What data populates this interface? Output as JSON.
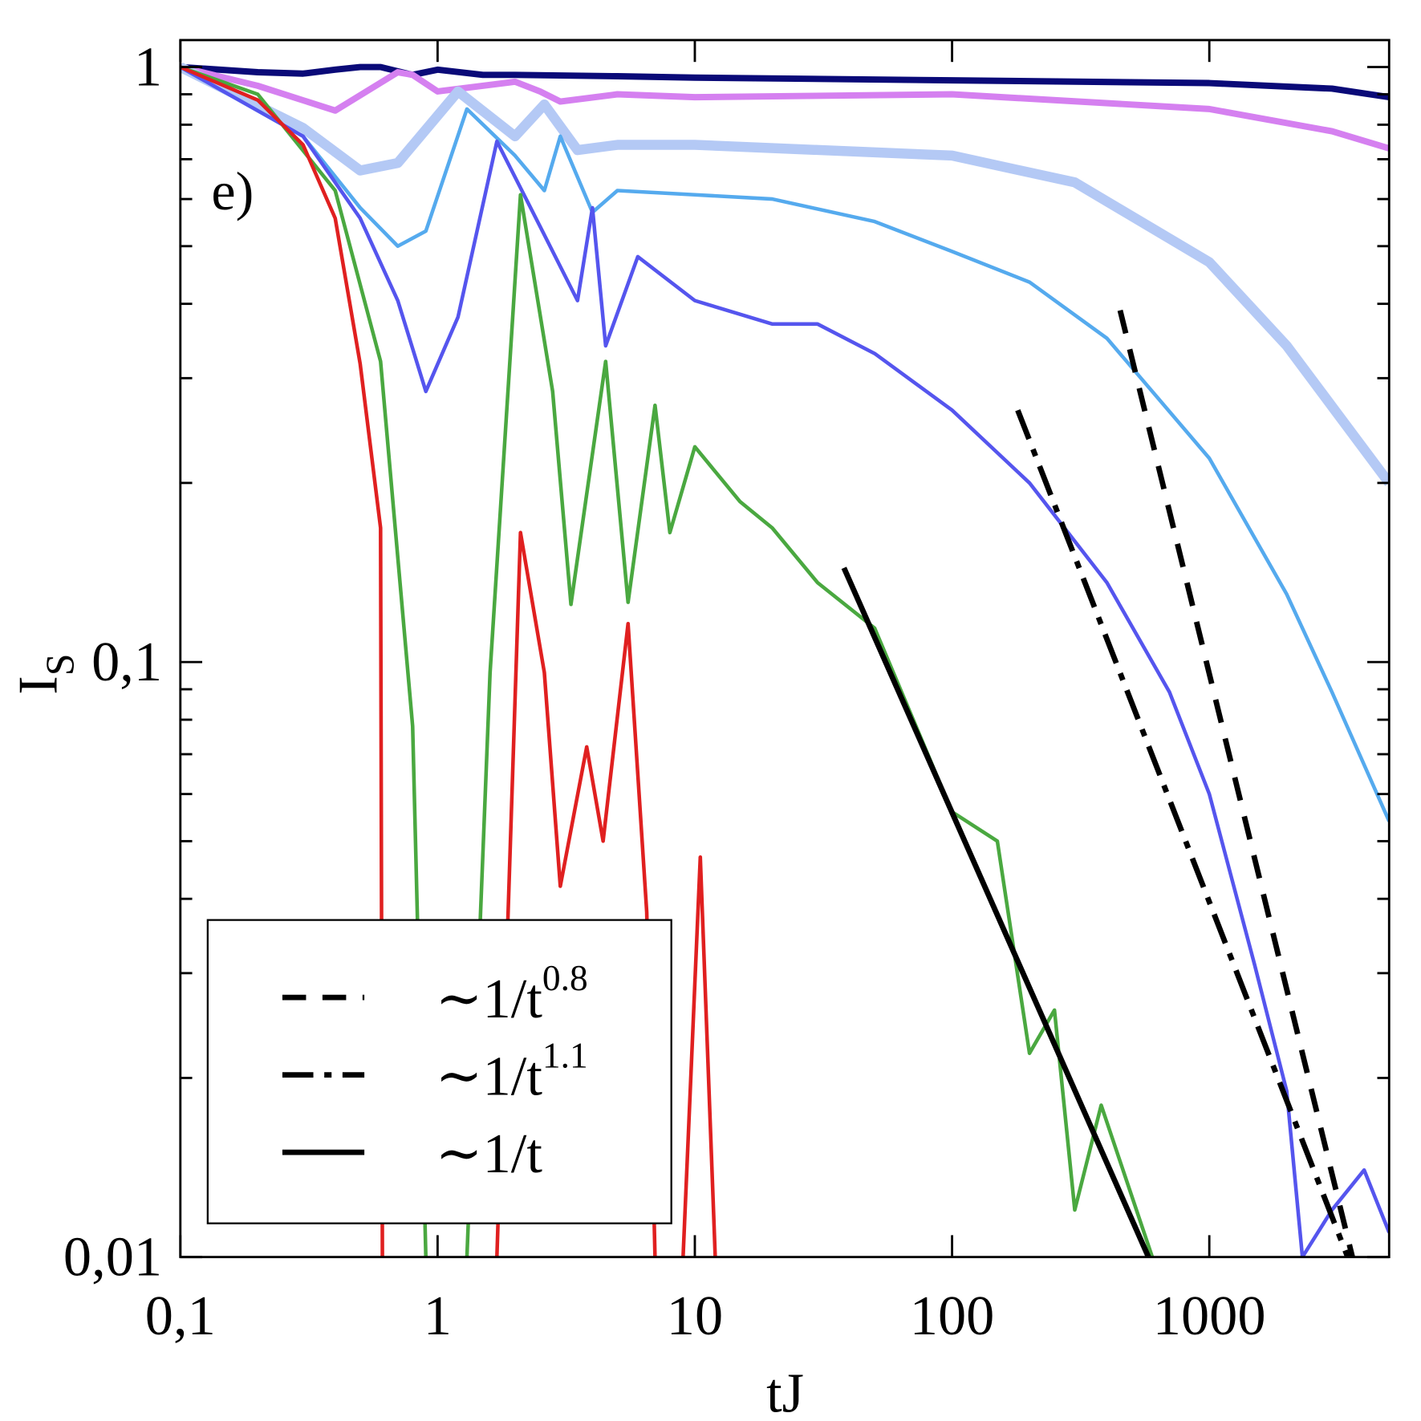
{
  "chart_data": {
    "type": "line",
    "xlabel": "tJ",
    "ylabel": "I",
    "ylabel_subscript": "S",
    "annotation": "e)",
    "xscale": "log",
    "yscale": "log",
    "xlim": [
      0.1,
      5000
    ],
    "ylim": [
      0.01,
      1.11
    ],
    "xticks": [
      {
        "value": 0.1,
        "label": "0,1"
      },
      1,
      10,
      100,
      1000
    ],
    "yticks": [
      {
        "value": 0.01,
        "label": "0,01"
      },
      {
        "value": 0.1,
        "label": "0,1"
      },
      1
    ],
    "yminorticks": [
      0.02,
      0.03,
      0.04,
      0.05,
      0.06,
      0.07,
      0.08,
      0.09,
      0.2,
      0.3,
      0.4,
      0.5,
      0.6,
      0.7,
      0.8,
      0.9
    ],
    "legend": "lower left",
    "series": [
      {
        "color": "#0a0a78",
        "width": 7,
        "x": [
          0.1,
          0.2,
          0.3,
          0.4,
          0.5,
          0.6,
          0.8,
          1,
          1.5,
          2,
          5,
          10,
          100,
          1000,
          3000,
          5000
        ],
        "values": [
          1,
          0.98,
          0.975,
          0.99,
          1.0,
          1.0,
          0.97,
          0.99,
          0.97,
          0.97,
          0.965,
          0.96,
          0.95,
          0.94,
          0.92,
          0.89
        ]
      },
      {
        "color": "#d580f0",
        "width": 7,
        "x": [
          0.1,
          0.2,
          0.4,
          0.7,
          0.8,
          1,
          2,
          2.5,
          3,
          5,
          10,
          100,
          1000,
          3000,
          5000
        ],
        "values": [
          1,
          0.93,
          0.845,
          0.98,
          0.97,
          0.91,
          0.945,
          0.91,
          0.875,
          0.9,
          0.89,
          0.9,
          0.85,
          0.78,
          0.73
        ]
      },
      {
        "color": "#b4c9f5",
        "width": 11,
        "x": [
          0.1,
          0.3,
          0.5,
          0.7,
          1.2,
          2,
          2.6,
          3.5,
          5,
          10,
          100,
          300,
          1000,
          2000,
          5000
        ],
        "values": [
          1,
          0.79,
          0.67,
          0.69,
          0.91,
          0.765,
          0.865,
          0.725,
          0.74,
          0.74,
          0.71,
          0.64,
          0.47,
          0.34,
          0.2
        ]
      },
      {
        "color": "#55aaee",
        "width": 4,
        "x": [
          0.1,
          0.3,
          0.5,
          0.7,
          0.9,
          1.3,
          2,
          2.6,
          3,
          4,
          5,
          10,
          20,
          50,
          100,
          200,
          400,
          1000,
          2000,
          3000,
          5000
        ],
        "values": [
          1,
          0.765,
          0.58,
          0.5,
          0.53,
          0.85,
          0.71,
          0.62,
          0.765,
          0.57,
          0.62,
          0.61,
          0.6,
          0.55,
          0.49,
          0.435,
          0.35,
          0.22,
          0.13,
          0.089,
          0.054
        ]
      },
      {
        "color": "#5555ee",
        "width": 4,
        "x": [
          0.1,
          0.3,
          0.5,
          0.7,
          0.9,
          1.2,
          1.7,
          2.5,
          3.5,
          4,
          4.5,
          6,
          10,
          20,
          30,
          50,
          100,
          200,
          400,
          700,
          1000,
          1500,
          2000,
          2300,
          3000,
          4000,
          5000
        ],
        "values": [
          1,
          0.765,
          0.557,
          0.405,
          0.285,
          0.38,
          0.75,
          0.54,
          0.405,
          0.58,
          0.34,
          0.48,
          0.405,
          0.37,
          0.37,
          0.33,
          0.265,
          0.2,
          0.136,
          0.089,
          0.06,
          0.031,
          0.019,
          0.01,
          0.012,
          0.014,
          0.011
        ]
      },
      {
        "color": "#4aa840",
        "width": 4,
        "x": [
          0.1,
          0.2,
          0.4,
          0.6,
          0.8,
          0.9,
          1.1,
          1.3,
          1.6,
          2.1,
          2.8,
          3.3,
          4.5,
          5.5,
          7,
          8,
          10,
          15,
          20,
          30,
          50,
          100,
          150,
          200,
          250,
          300,
          380,
          600
        ],
        "values": [
          1,
          0.9,
          0.62,
          0.32,
          0.078,
          0.01,
          null,
          0.01,
          0.096,
          0.61,
          0.285,
          0.125,
          0.32,
          0.126,
          0.27,
          0.165,
          0.23,
          0.186,
          0.168,
          0.136,
          0.114,
          0.056,
          0.05,
          0.022,
          0.026,
          0.012,
          0.018,
          0.01
        ]
      },
      {
        "color": "#e02020",
        "width": 4,
        "x": [
          0.1,
          0.2,
          0.3,
          0.4,
          0.5,
          0.6,
          0.61,
          1,
          1.7,
          2.1,
          2.6,
          3,
          3.8,
          4.4,
          5.5,
          6.5,
          7,
          8,
          9,
          10.5,
          12
        ],
        "values": [
          1,
          0.88,
          0.74,
          0.557,
          0.317,
          0.168,
          0.01,
          null,
          0.01,
          0.165,
          0.096,
          0.042,
          0.072,
          0.05,
          0.116,
          0.038,
          0.01,
          null,
          0.01,
          0.047,
          0.01
        ]
      },
      {
        "name": "∼1/t",
        "name_superscript": "0.8",
        "color": "#000000",
        "width": 6,
        "dash": "dashed",
        "x": [
          450,
          3600
        ],
        "values": [
          0.39,
          0.01
        ]
      },
      {
        "name": "∼1/t",
        "name_superscript": "1.1",
        "color": "#000000",
        "width": 6,
        "dash": "dashdot",
        "x": [
          180,
          3450
        ],
        "values": [
          0.265,
          0.01
        ]
      },
      {
        "name": "∼1/t",
        "color": "#000000",
        "width": 6,
        "dash": "solid",
        "x": [
          38,
          580
        ],
        "values": [
          0.144,
          0.01
        ]
      }
    ]
  }
}
